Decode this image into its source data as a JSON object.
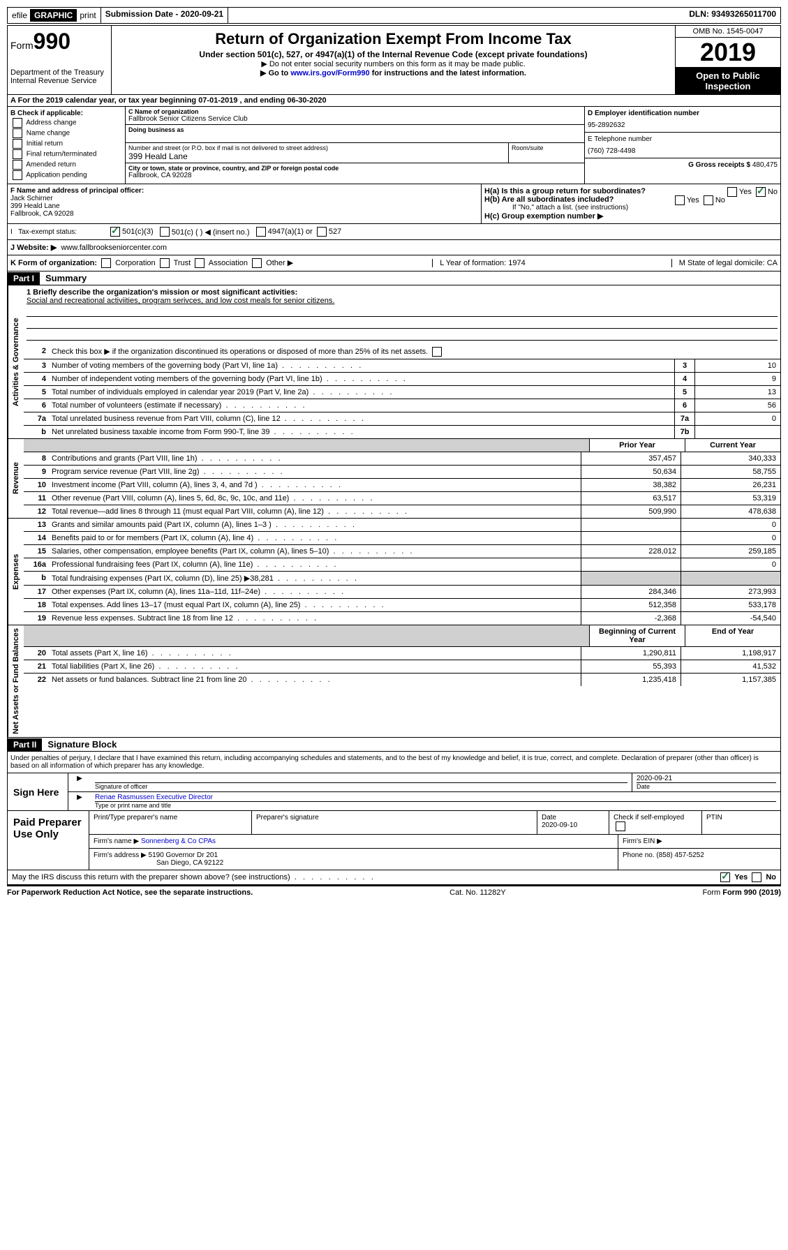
{
  "top": {
    "efile": "efile",
    "graphic": "GRAPHIC",
    "print": "print",
    "submission": "Submission Date - 2020-09-21",
    "dln": "DLN: 93493265011700"
  },
  "header": {
    "form_label": "Form",
    "form_number": "990",
    "dept1": "Department of the Treasury",
    "dept2": "Internal Revenue Service",
    "title": "Return of Organization Exempt From Income Tax",
    "subtitle": "Under section 501(c), 527, or 4947(a)(1) of the Internal Revenue Code (except private foundations)",
    "note1": "▶ Do not enter social security numbers on this form as it may be made public.",
    "note2_pre": "▶ Go to ",
    "note2_link": "www.irs.gov/Form990",
    "note2_post": " for instructions and the latest information.",
    "omb": "OMB No. 1545-0047",
    "year": "2019",
    "open": "Open to Public Inspection"
  },
  "section_a": "A   For the 2019 calendar year, or tax year beginning 07-01-2019     , and ending 06-30-2020",
  "col_b": {
    "label": "B Check if applicable:",
    "opts": [
      "Address change",
      "Name change",
      "Initial return",
      "Final return/terminated",
      "Amended return",
      "Application pending"
    ]
  },
  "col_c": {
    "name_label": "C Name of organization",
    "name": "Fallbrook Senior Citizens Service Club",
    "dba_label": "Doing business as",
    "addr_label": "Number and street (or P.O. box if mail is not delivered to street address)",
    "addr": "399 Heald Lane",
    "room_label": "Room/suite",
    "city_label": "City or town, state or province, country, and ZIP or foreign postal code",
    "city": "Fallbrook, CA  92028"
  },
  "col_d": {
    "d_label": "D Employer identification number",
    "ein": "95-2892632",
    "e_label": "E Telephone number",
    "phone": "(760) 728-4498",
    "g_label": "G Gross receipts $",
    "g_val": "480,475"
  },
  "row_f": {
    "label": "F  Name and address of principal officer:",
    "name": "Jack Schirner",
    "addr1": "399 Heald Lane",
    "addr2": "Fallbrook, CA  92028",
    "ha": "H(a)  Is this a group return for subordinates?",
    "hb": "H(b)  Are all subordinates included?",
    "hb_note": "If \"No,\" attach a list. (see instructions)",
    "hc": "H(c)  Group exemption number ▶",
    "yes": "Yes",
    "no": "No"
  },
  "tax_status": {
    "label": "Tax-exempt status:",
    "o1": "501(c)(3)",
    "o2": "501(c) (   ) ◀ (insert no.)",
    "o3": "4947(a)(1) or",
    "o4": "527"
  },
  "website": {
    "label": "J   Website: ▶",
    "url": "www.fallbrookseniorcenter.com"
  },
  "k_row": {
    "k": "K Form of organization:",
    "opts": [
      "Corporation",
      "Trust",
      "Association",
      "Other ▶"
    ],
    "l": "L Year of formation: 1974",
    "m": "M State of legal domicile: CA"
  },
  "part1": {
    "header": "Part I",
    "title": "Summary",
    "line1_label": "1  Briefly describe the organization's mission or most significant activities:",
    "line1_text": "Social and recreational activiities, program serivces, and low cost meals for senior citizens.",
    "line2": "Check this box ▶        if the organization discontinued its operations or disposed of more than 25% of its net assets.",
    "lines": [
      {
        "n": "3",
        "d": "Number of voting members of the governing body (Part VI, line 1a)",
        "b": "3",
        "v": "10"
      },
      {
        "n": "4",
        "d": "Number of independent voting members of the governing body (Part VI, line 1b)",
        "b": "4",
        "v": "9"
      },
      {
        "n": "5",
        "d": "Total number of individuals employed in calendar year 2019 (Part V, line 2a)",
        "b": "5",
        "v": "13"
      },
      {
        "n": "6",
        "d": "Total number of volunteers (estimate if necessary)",
        "b": "6",
        "v": "56"
      },
      {
        "n": "7a",
        "d": "Total unrelated business revenue from Part VIII, column (C), line 12",
        "b": "7a",
        "v": "0"
      },
      {
        "n": "b",
        "d": "Net unrelated business taxable income from Form 990-T, line 39",
        "b": "7b",
        "v": ""
      }
    ],
    "prior_year": "Prior Year",
    "current_year": "Current Year",
    "revenue": [
      {
        "n": "8",
        "d": "Contributions and grants (Part VIII, line 1h)",
        "p": "357,457",
        "c": "340,333"
      },
      {
        "n": "9",
        "d": "Program service revenue (Part VIII, line 2g)",
        "p": "50,634",
        "c": "58,755"
      },
      {
        "n": "10",
        "d": "Investment income (Part VIII, column (A), lines 3, 4, and 7d )",
        "p": "38,382",
        "c": "26,231"
      },
      {
        "n": "11",
        "d": "Other revenue (Part VIII, column (A), lines 5, 6d, 8c, 9c, 10c, and 11e)",
        "p": "63,517",
        "c": "53,319"
      },
      {
        "n": "12",
        "d": "Total revenue—add lines 8 through 11 (must equal Part VIII, column (A), line 12)",
        "p": "509,990",
        "c": "478,638"
      }
    ],
    "expenses": [
      {
        "n": "13",
        "d": "Grants and similar amounts paid (Part IX, column (A), lines 1–3 )",
        "p": "",
        "c": "0"
      },
      {
        "n": "14",
        "d": "Benefits paid to or for members (Part IX, column (A), line 4)",
        "p": "",
        "c": "0"
      },
      {
        "n": "15",
        "d": "Salaries, other compensation, employee benefits (Part IX, column (A), lines 5–10)",
        "p": "228,012",
        "c": "259,185"
      },
      {
        "n": "16a",
        "d": "Professional fundraising fees (Part IX, column (A), line 11e)",
        "p": "",
        "c": "0"
      },
      {
        "n": "b",
        "d": "Total fundraising expenses (Part IX, column (D), line 25) ▶38,281",
        "p": "grey",
        "c": "grey"
      },
      {
        "n": "17",
        "d": "Other expenses (Part IX, column (A), lines 11a–11d, 11f–24e)",
        "p": "284,346",
        "c": "273,993"
      },
      {
        "n": "18",
        "d": "Total expenses. Add lines 13–17 (must equal Part IX, column (A), line 25)",
        "p": "512,358",
        "c": "533,178"
      },
      {
        "n": "19",
        "d": "Revenue less expenses. Subtract line 18 from line 12",
        "p": "-2,368",
        "c": "-54,540"
      }
    ],
    "begin_year": "Beginning of Current Year",
    "end_year": "End of Year",
    "netassets": [
      {
        "n": "20",
        "d": "Total assets (Part X, line 16)",
        "p": "1,290,811",
        "c": "1,198,917"
      },
      {
        "n": "21",
        "d": "Total liabilities (Part X, line 26)",
        "p": "55,393",
        "c": "41,532"
      },
      {
        "n": "22",
        "d": "Net assets or fund balances. Subtract line 21 from line 20",
        "p": "1,235,418",
        "c": "1,157,385"
      }
    ]
  },
  "sidelabels": {
    "gov": "Activities & Governance",
    "rev": "Revenue",
    "exp": "Expenses",
    "net": "Net Assets or Fund Balances"
  },
  "part2": {
    "header": "Part II",
    "title": "Signature Block",
    "declaration": "Under penalties of perjury, I declare that I have examined this return, including accompanying schedules and statements, and to the best of my knowledge and belief, it is true, correct, and complete. Declaration of preparer (other than officer) is based on all information of which preparer has any knowledge.",
    "sign_here": "Sign Here",
    "sig_officer": "Signature of officer",
    "sig_date": "2020-09-21",
    "date_label": "Date",
    "typed_name": "Renae Rasmussen Executive Director",
    "typed_label": "Type or print name and title",
    "paid": "Paid Preparer Use Only",
    "prep_name_label": "Print/Type preparer's name",
    "prep_sig_label": "Preparer's signature",
    "prep_date_label": "Date",
    "prep_date": "2020-09-10",
    "check_label": "Check         if self-employed",
    "ptin_label": "PTIN",
    "firm_name_label": "Firm's name    ▶",
    "firm_name": "Sonnenberg & Co CPAs",
    "firm_ein_label": "Firm's EIN ▶",
    "firm_addr_label": "Firm's address ▶",
    "firm_addr1": "5190 Governor Dr 201",
    "firm_addr2": "San Diego, CA  92122",
    "phone_label": "Phone no.",
    "phone": "(858) 457-5252",
    "discuss": "May the IRS discuss this return with the preparer shown above? (see instructions)",
    "yes": "Yes",
    "no": "No"
  },
  "footer": {
    "paperwork": "For Paperwork Reduction Act Notice, see the separate instructions.",
    "cat": "Cat. No. 11282Y",
    "form": "Form 990 (2019)"
  }
}
